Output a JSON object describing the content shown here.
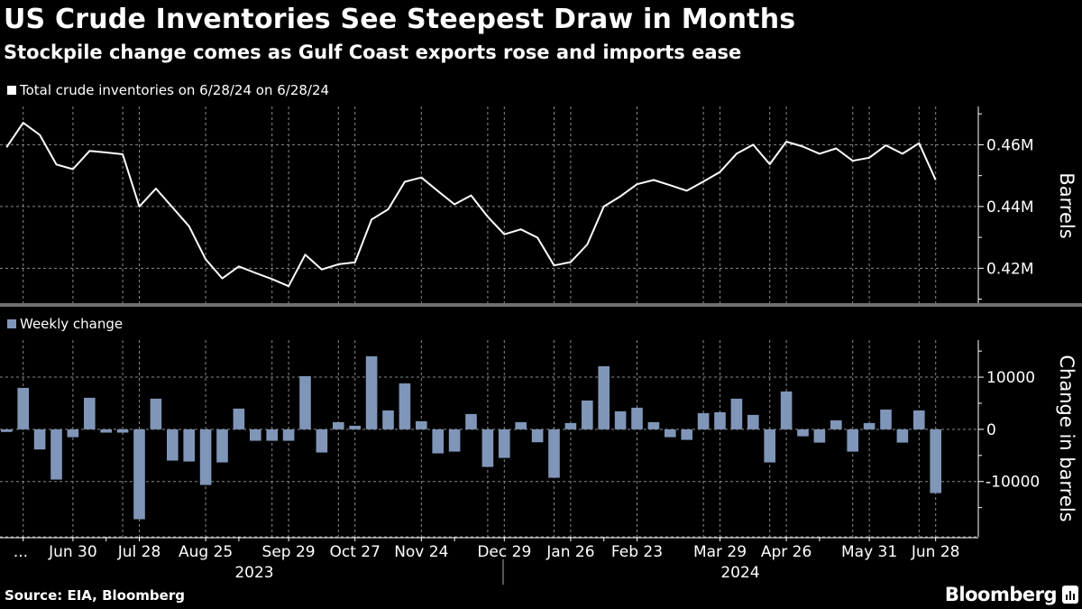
{
  "title": "US Crude Inventories See Steepest Draw in Months",
  "subtitle": "Stockpile change comes as Gulf Coast exports rose and imports ease",
  "source": "Source: EIA, Bloomberg",
  "logo_text": "Bloomberg",
  "colors": {
    "background": "#000000",
    "line": "#ffffff",
    "bar": "#8096b8",
    "grid": "#8a8a8a",
    "separator": "#6e6e6e"
  },
  "chart_data": [
    {
      "type": "line",
      "legend": "Total crude inventories on 6/28/24 on 6/28/24",
      "ylabel": "Barrels",
      "y_ticks": [
        "0.42M",
        "0.44M",
        "0.46M"
      ],
      "y_tick_values": [
        0.42,
        0.44,
        0.46
      ],
      "ylim": [
        0.4087,
        0.4724
      ],
      "unit": "M barrels",
      "x_start": "2023-06-02",
      "x_end": "2024-06-28",
      "x_frequency": "weekly",
      "grid": true,
      "values": [
        0.4592,
        0.4671,
        0.4632,
        0.4536,
        0.4521,
        0.458,
        0.4575,
        0.4569,
        0.44,
        0.4458,
        0.4397,
        0.4336,
        0.4229,
        0.4167,
        0.4206,
        0.4185,
        0.4165,
        0.4142,
        0.4244,
        0.4196,
        0.4213,
        0.4219,
        0.4358,
        0.4391,
        0.448,
        0.4494,
        0.445,
        0.4407,
        0.4436,
        0.4367,
        0.431,
        0.4326,
        0.4299,
        0.4209,
        0.422,
        0.4277,
        0.44,
        0.4433,
        0.4472,
        0.4486,
        0.4469,
        0.4451,
        0.4481,
        0.4512,
        0.4571,
        0.46,
        0.4537,
        0.461,
        0.4594,
        0.4571,
        0.4588,
        0.4548,
        0.4558,
        0.4598,
        0.4571,
        0.4605,
        0.4486
      ]
    },
    {
      "type": "bar",
      "legend": "Weekly change",
      "ylabel": "Change in barrels",
      "y_ticks": [
        "-10000",
        "0",
        "10000"
      ],
      "y_tick_values": [
        -10000,
        0,
        10000
      ],
      "ylim": [
        -20600,
        17100
      ],
      "x_start": "2023-06-02",
      "x_end": "2024-06-28",
      "x_frequency": "weekly",
      "grid": true,
      "values": [
        -500,
        7950,
        -3860,
        -9630,
        -1500,
        6050,
        -630,
        -630,
        -17230,
        5880,
        -5990,
        -6170,
        -10660,
        -6340,
        3980,
        -2190,
        -2190,
        -2190,
        10200,
        -4440,
        1380,
        690,
        14010,
        3630,
        8820,
        1560,
        -4610,
        -4270,
        2940,
        -7200,
        -5480,
        1380,
        -2480,
        -9280,
        1210,
        5530,
        12100,
        3460,
        4150,
        1380,
        -1500,
        -2020,
        3110,
        3290,
        5880,
        2770,
        -6340,
        7260,
        -1330,
        -2540,
        1730,
        -4270,
        1210,
        3800,
        -2540,
        3630,
        -12220
      ]
    }
  ],
  "x_axis": {
    "tick_labels": [
      "...",
      "Jun 30",
      "Jul 28",
      "Aug 25",
      "Sep 29",
      "Oct 27",
      "Nov 24",
      "Dec 29",
      "Jan 26",
      "Feb 23",
      "Mar 29",
      "Apr 26",
      "May 31",
      "Jun 28"
    ],
    "tick_weeks": [
      0.85,
      4,
      8,
      12,
      17,
      21,
      25,
      30,
      34,
      38,
      43,
      47,
      52,
      56
    ],
    "years": [
      "2023",
      "2024"
    ]
  }
}
